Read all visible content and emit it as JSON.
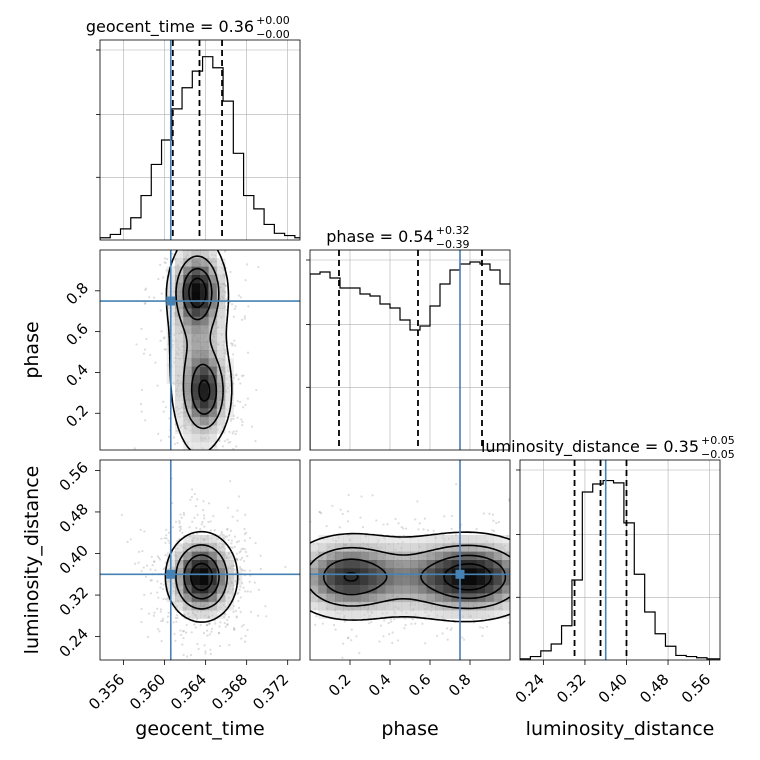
{
  "chart_data": {
    "type": "corner",
    "parameters": [
      "geocent_time",
      "phase",
      "luminosity_distance"
    ],
    "truths": {
      "geocent_time": 0.3606,
      "phase": 0.75,
      "luminosity_distance": 0.36
    },
    "colors": {
      "truth": "#4682b4",
      "hist": "#000000",
      "grid": "#b0b0b0"
    },
    "titles": [
      {
        "param": "geocent_time",
        "text": "geocent_time = 0.36",
        "plus": "+0.00",
        "minus": "−0.00"
      },
      {
        "param": "phase",
        "text": "phase = 0.54",
        "plus": "+0.32",
        "minus": "−0.39"
      },
      {
        "param": "luminosity_distance",
        "text": "luminosity_distance = 0.35",
        "plus": "+0.05",
        "minus": "−0.05"
      }
    ],
    "diagonal": [
      {
        "param": "geocent_time",
        "range": [
          0.3537,
          0.3732
        ],
        "quantiles": [
          0.3608,
          0.3634,
          0.3656
        ],
        "bin_edges": [
          0.3537,
          0.3547,
          0.3557,
          0.3567,
          0.3577,
          0.3587,
          0.3597,
          0.3607,
          0.3617,
          0.3627,
          0.3637,
          0.3647,
          0.3657,
          0.3667,
          0.3677,
          0.3687,
          0.3697,
          0.3707,
          0.3717,
          0.3727,
          0.3732
        ],
        "counts": [
          2,
          5,
          10,
          20,
          40,
          68,
          90,
          118,
          137,
          152,
          165,
          155,
          125,
          78,
          40,
          28,
          14,
          6,
          4,
          2
        ],
        "ymax": 180
      },
      {
        "param": "phase",
        "range": [
          0.0,
          1.0
        ],
        "quantiles": [
          0.145,
          0.54,
          0.86
        ],
        "bin_edges": [
          0.0,
          0.05,
          0.1,
          0.15,
          0.2,
          0.25,
          0.3,
          0.35,
          0.4,
          0.45,
          0.5,
          0.55,
          0.6,
          0.65,
          0.7,
          0.75,
          0.8,
          0.85,
          0.9,
          0.95,
          1.0
        ],
        "counts": [
          88,
          89,
          86,
          81,
          81,
          78,
          77,
          73,
          71,
          65,
          60,
          62,
          72,
          83,
          90,
          93,
          94,
          93,
          90,
          83
        ],
        "ymax": 100
      },
      {
        "param": "luminosity_distance",
        "range": [
          0.195,
          0.58
        ],
        "quantiles": [
          0.3,
          0.35,
          0.4
        ],
        "bin_edges": [
          0.195,
          0.215,
          0.235,
          0.255,
          0.275,
          0.295,
          0.315,
          0.335,
          0.355,
          0.375,
          0.395,
          0.415,
          0.435,
          0.455,
          0.475,
          0.495,
          0.515,
          0.535,
          0.555,
          0.575,
          0.58
        ],
        "counts": [
          1,
          3,
          8,
          14,
          30,
          70,
          147,
          154,
          157,
          155,
          120,
          75,
          42,
          23,
          12,
          4,
          3,
          2,
          1,
          1
        ],
        "ymax": 175
      }
    ],
    "pairs": [
      {
        "x": "geocent_time",
        "y": "phase",
        "xrange": [
          0.3537,
          0.3732
        ],
        "yrange": [
          0.02,
          1.0
        ],
        "truth": [
          0.3606,
          0.75
        ],
        "blobs": [
          {
            "cx": 0.3632,
            "cy": 0.8,
            "sx": 0.0013,
            "sy": 0.1,
            "w": 1.0
          },
          {
            "cx": 0.364,
            "cy": 0.3,
            "sx": 0.0012,
            "sy": 0.11,
            "w": 0.9
          },
          {
            "cx": 0.3632,
            "cy": 0.55,
            "sx": 0.0018,
            "sy": 0.35,
            "w": 0.5
          }
        ]
      },
      {
        "x": "geocent_time",
        "y": "luminosity_distance",
        "xrange": [
          0.3537,
          0.3732
        ],
        "yrange": [
          0.195,
          0.58
        ],
        "truth": [
          0.3606,
          0.36
        ],
        "blobs": [
          {
            "cx": 0.3636,
            "cy": 0.355,
            "sx": 0.0017,
            "sy": 0.042,
            "w": 1.0
          }
        ]
      },
      {
        "x": "phase",
        "y": "luminosity_distance",
        "xrange": [
          0.0,
          1.0
        ],
        "yrange": [
          0.195,
          0.58
        ],
        "truth": [
          0.75,
          0.36
        ],
        "blobs": [
          {
            "cx": 0.18,
            "cy": 0.355,
            "sx": 0.14,
            "sy": 0.04,
            "w": 0.75
          },
          {
            "cx": 0.82,
            "cy": 0.355,
            "sx": 0.16,
            "sy": 0.04,
            "w": 0.95
          },
          {
            "cx": 0.5,
            "cy": 0.355,
            "sx": 0.35,
            "sy": 0.045,
            "w": 0.55
          }
        ]
      }
    ],
    "ticks": {
      "geocent_time": {
        "values": [
          0.356,
          0.36,
          0.364,
          0.368,
          0.372
        ],
        "labels": [
          "0.356",
          "0.360",
          "0.364",
          "0.368",
          "0.372"
        ]
      },
      "phase_x": {
        "values": [
          0.2,
          0.4,
          0.6,
          0.8
        ],
        "labels": [
          "0.2",
          "0.4",
          "0.6",
          "0.8"
        ]
      },
      "phase_y": {
        "values": [
          0.2,
          0.4,
          0.6,
          0.8
        ],
        "labels": [
          "0.2",
          "0.4",
          "0.6",
          "0.8"
        ]
      },
      "luminosity_distance": {
        "values": [
          0.24,
          0.32,
          0.4,
          0.48,
          0.56
        ],
        "labels": [
          "0.24",
          "0.32",
          "0.40",
          "0.48",
          "0.56"
        ]
      }
    },
    "axis_labels": {
      "x": [
        "geocent_time",
        "phase",
        "luminosity_distance"
      ],
      "y": [
        "phase",
        "luminosity_distance"
      ]
    },
    "grid": true
  }
}
